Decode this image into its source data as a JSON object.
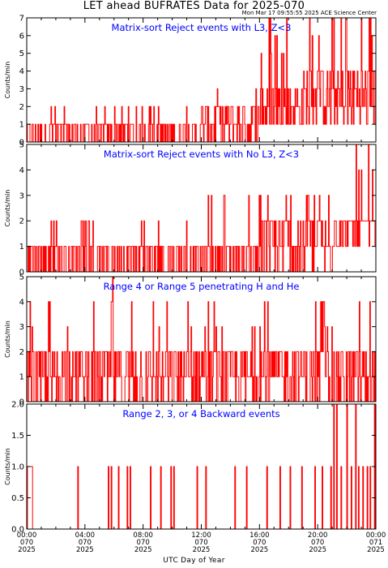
{
  "title": "LET ahead BUFRATES Data for 2025-070",
  "timestamp": "Mon Mar 17 09:55:55 2025 ACE Science Center",
  "x_axis_title": "UTC Day of Year",
  "colors": {
    "data": "#ff0000",
    "panel_title": "#0000ff",
    "axes": "#000000",
    "background": "#ffffff"
  },
  "chart_data": [
    {
      "type": "line",
      "title": "Matrix-sort Reject events with L3, Z<3",
      "ylabel": "Counts/min",
      "ylim": [
        0,
        7
      ],
      "yticks": [
        0,
        1,
        2,
        3,
        4,
        5,
        6,
        7
      ],
      "xlim": [
        0,
        24
      ],
      "series_profile": [
        {
          "t0": 0,
          "t1": 3.5,
          "base": [
            0,
            1
          ],
          "spikes": 2,
          "max": 2
        },
        {
          "t0": 3.5,
          "t1": 12,
          "base": [
            0,
            1
          ],
          "spikes": 2,
          "max": 2
        },
        {
          "t0": 12,
          "t1": 16,
          "base": [
            0,
            2
          ],
          "spikes": 3,
          "max": 3
        },
        {
          "t0": 16,
          "t1": 19,
          "base": [
            1,
            3
          ],
          "spikes": 5,
          "max": 7
        },
        {
          "t0": 19,
          "t1": 24,
          "base": [
            1,
            4
          ],
          "spikes": 6,
          "max": 7
        }
      ]
    },
    {
      "type": "line",
      "title": "Matrix-sort Reject events with No L3, Z<3",
      "ylabel": "Counts/min",
      "ylim": [
        0,
        5
      ],
      "yticks": [
        0,
        1,
        2,
        3,
        4,
        5
      ],
      "xlim": [
        0,
        24
      ],
      "series_profile": [
        {
          "t0": 0,
          "t1": 12,
          "base": [
            0,
            1
          ],
          "spikes": 2,
          "max": 2
        },
        {
          "t0": 12,
          "t1": 16,
          "base": [
            0,
            1
          ],
          "spikes": 3,
          "max": 3
        },
        {
          "t0": 16,
          "t1": 21,
          "base": [
            0,
            2
          ],
          "spikes": 3,
          "max": 3
        },
        {
          "t0": 21,
          "t1": 24,
          "base": [
            1,
            2
          ],
          "spikes": 4,
          "max": 5
        }
      ]
    },
    {
      "type": "line",
      "title": "Range 4 or Range 5 penetrating H and He",
      "ylabel": "Counts/min",
      "ylim": [
        0,
        5
      ],
      "yticks": [
        0,
        1,
        2,
        3,
        4,
        5
      ],
      "xlim": [
        0,
        24
      ],
      "series_profile": [
        {
          "t0": 0,
          "t1": 24,
          "base": [
            0,
            2
          ],
          "spikes": 3,
          "max": 4
        },
        {
          "t0": 5.8,
          "t1": 5.9,
          "base": [
            2,
            5
          ],
          "spikes": 5,
          "max": 5
        }
      ]
    },
    {
      "type": "line",
      "title": "Range 2, 3, or 4 Backward events",
      "ylabel": "Counts/min",
      "ylim": [
        0,
        2
      ],
      "yticks": [
        "0.0",
        "0.5",
        "1.0",
        "1.5",
        "2.0"
      ],
      "xlim": [
        0,
        24
      ],
      "events": [
        {
          "t": 0.05,
          "w": 0.35,
          "v": 1
        },
        {
          "t": 3.5,
          "w": 0.05,
          "v": 1
        },
        {
          "t": 5.6,
          "w": 0.05,
          "v": 1
        },
        {
          "t": 5.8,
          "w": 0.05,
          "v": 1
        },
        {
          "t": 6.3,
          "w": 0.05,
          "v": 1
        },
        {
          "t": 6.9,
          "w": 0.05,
          "v": 1
        },
        {
          "t": 7.1,
          "w": 0.05,
          "v": 1
        },
        {
          "t": 8.5,
          "w": 0.05,
          "v": 1
        },
        {
          "t": 9.2,
          "w": 0.05,
          "v": 1
        },
        {
          "t": 9.9,
          "w": 0.05,
          "v": 1
        },
        {
          "t": 10.1,
          "w": 0.05,
          "v": 1
        },
        {
          "t": 11.7,
          "w": 0.05,
          "v": 1
        },
        {
          "t": 12.3,
          "w": 0.05,
          "v": 1
        },
        {
          "t": 14.3,
          "w": 0.05,
          "v": 1
        },
        {
          "t": 15.1,
          "w": 0.05,
          "v": 1
        },
        {
          "t": 16.5,
          "w": 0.05,
          "v": 1
        },
        {
          "t": 17.4,
          "w": 0.05,
          "v": 1
        },
        {
          "t": 18.1,
          "w": 0.05,
          "v": 1
        },
        {
          "t": 18.9,
          "w": 0.05,
          "v": 1
        },
        {
          "t": 19.8,
          "w": 0.05,
          "v": 1
        },
        {
          "t": 20.3,
          "w": 0.05,
          "v": 1
        },
        {
          "t": 20.9,
          "w": 0.05,
          "v": 1
        },
        {
          "t": 21.1,
          "w": 0.05,
          "v": 2
        },
        {
          "t": 21.3,
          "w": 0.05,
          "v": 2
        },
        {
          "t": 21.6,
          "w": 0.05,
          "v": 1
        },
        {
          "t": 22.0,
          "w": 0.05,
          "v": 2
        },
        {
          "t": 22.3,
          "w": 0.05,
          "v": 1
        },
        {
          "t": 22.6,
          "w": 0.05,
          "v": 2
        },
        {
          "t": 22.8,
          "w": 0.05,
          "v": 1
        },
        {
          "t": 23.1,
          "w": 0.05,
          "v": 1
        },
        {
          "t": 23.4,
          "w": 0.05,
          "v": 1
        },
        {
          "t": 23.6,
          "w": 0.05,
          "v": 1
        },
        {
          "t": 23.9,
          "w": 0.05,
          "v": 2
        }
      ]
    }
  ],
  "x_ticks": [
    {
      "time": "00:00",
      "doy": "070",
      "year": "2025"
    },
    {
      "time": "04:00",
      "doy": "070",
      "year": "2025"
    },
    {
      "time": "08:00",
      "doy": "070",
      "year": "2025"
    },
    {
      "time": "12:00",
      "doy": "070",
      "year": "2025"
    },
    {
      "time": "16:00",
      "doy": "070",
      "year": "2025"
    },
    {
      "time": "20:00",
      "doy": "070",
      "year": "2025"
    },
    {
      "time": "00:00",
      "doy": "071",
      "year": "2025"
    }
  ]
}
